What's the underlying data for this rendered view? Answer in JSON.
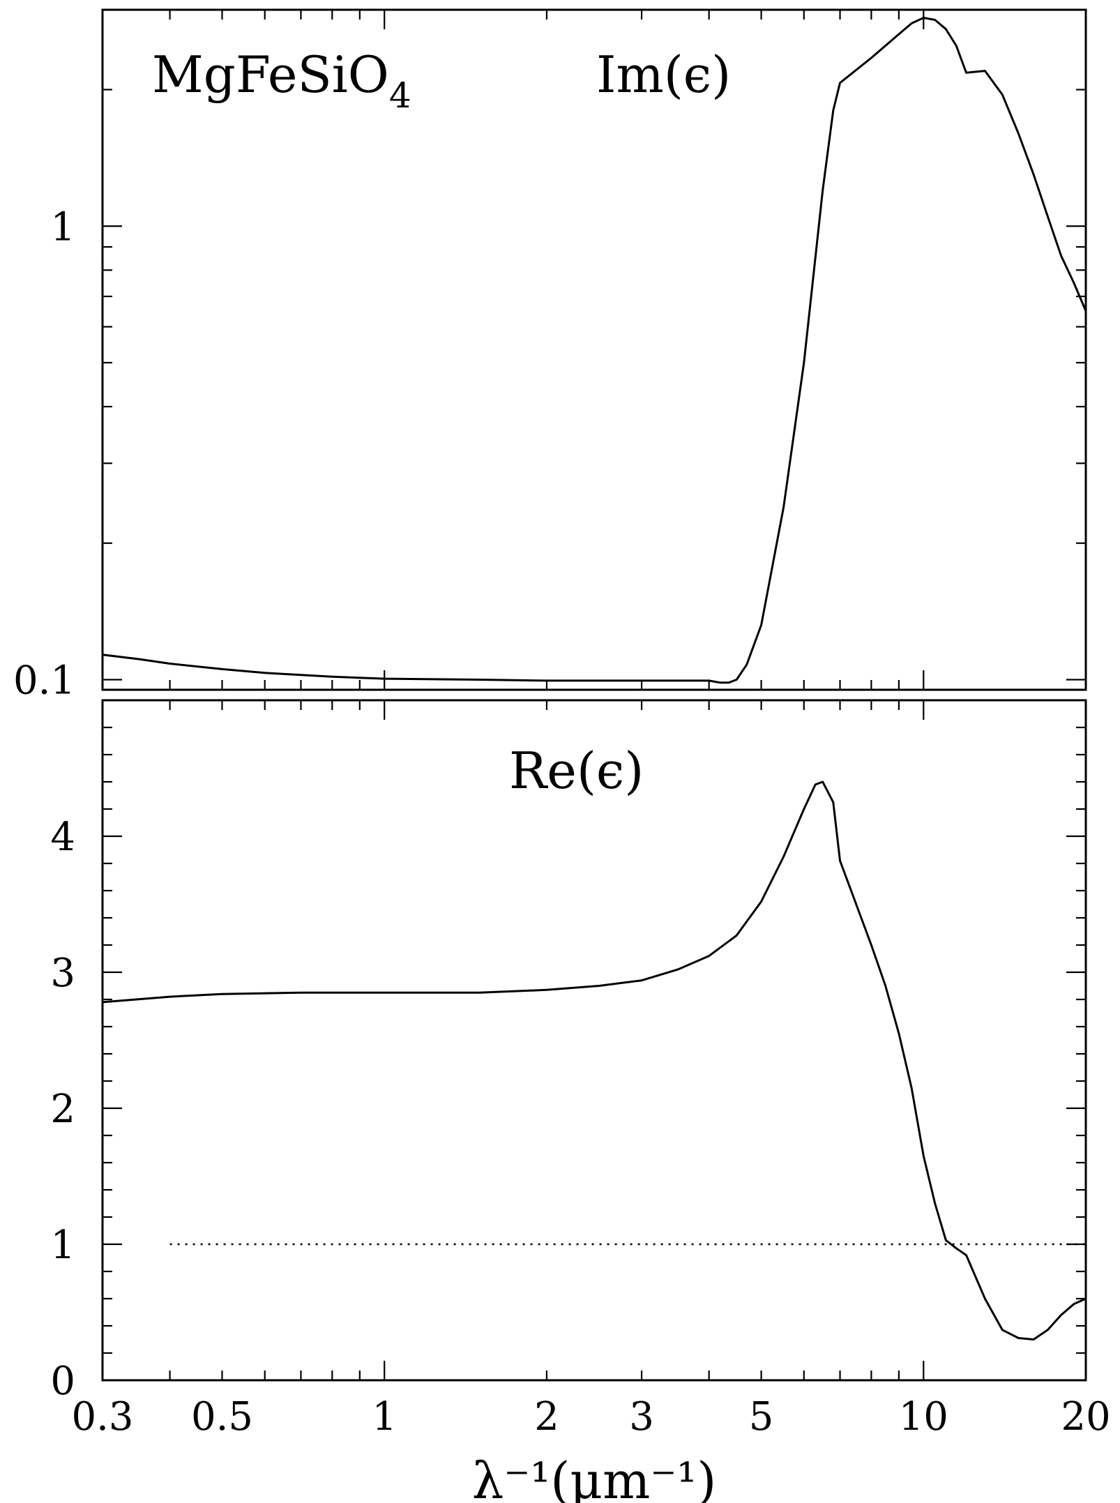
{
  "chart_data": [
    {
      "type": "line",
      "panel": "top",
      "x_scale": "log",
      "y_scale": "log",
      "xlim": [
        0.3,
        20
      ],
      "ylim": [
        0.095,
        3.0
      ],
      "annotations": [
        "MgFeSiO",
        "4",
        "Im(ϵ)"
      ],
      "yticks_labeled": [
        {
          "value": 0.1,
          "label": "0.1"
        },
        {
          "value": 1,
          "label": "1"
        }
      ],
      "series": [
        {
          "x": [
            0.3,
            0.35,
            0.4,
            0.5,
            0.6,
            0.8,
            1.0,
            1.5,
            2.0,
            3.0,
            4.0,
            4.2,
            4.35,
            4.5,
            4.7,
            5.0,
            5.5,
            6.0,
            6.5,
            6.8,
            7.0,
            8.0,
            9.0,
            9.5,
            10.0,
            10.5,
            11.0,
            11.5,
            12.0,
            13.0,
            14.0,
            15.0,
            16.0,
            17.0,
            18.0,
            19.0,
            20.0
          ],
          "y": [
            0.1135,
            0.111,
            0.1085,
            0.1055,
            0.1035,
            0.1015,
            0.1005,
            0.1,
            0.0995,
            0.0995,
            0.0995,
            0.0985,
            0.0985,
            0.1,
            0.108,
            0.132,
            0.24,
            0.5,
            1.2,
            1.8,
            2.07,
            2.35,
            2.65,
            2.8,
            2.88,
            2.85,
            2.72,
            2.5,
            2.18,
            2.2,
            1.95,
            1.6,
            1.3,
            1.05,
            0.86,
            0.75,
            0.65
          ]
        }
      ]
    },
    {
      "type": "line",
      "panel": "bottom",
      "x_scale": "log",
      "y_scale": "linear",
      "xlim": [
        0.3,
        20
      ],
      "ylim": [
        0,
        5
      ],
      "annotations": [
        "Re(ϵ)"
      ],
      "xlabel": "λ⁻¹(μm⁻¹)",
      "xticks_labeled": [
        {
          "value": 0.3,
          "label": "0.3"
        },
        {
          "value": 0.5,
          "label": "0.5"
        },
        {
          "value": 1,
          "label": "1"
        },
        {
          "value": 2,
          "label": "2"
        },
        {
          "value": 3,
          "label": "3"
        },
        {
          "value": 5,
          "label": "5"
        },
        {
          "value": 10,
          "label": "10"
        },
        {
          "value": 20,
          "label": "20"
        }
      ],
      "yticks_labeled": [
        {
          "value": 0,
          "label": "0"
        },
        {
          "value": 1,
          "label": "1"
        },
        {
          "value": 2,
          "label": "2"
        },
        {
          "value": 3,
          "label": "3"
        },
        {
          "value": 4,
          "label": "4"
        }
      ],
      "reference_line": {
        "y": 1,
        "style": "dotted"
      },
      "series": [
        {
          "x": [
            0.3,
            0.4,
            0.5,
            0.7,
            1.0,
            1.5,
            2.0,
            2.5,
            3.0,
            3.5,
            4.0,
            4.5,
            5.0,
            5.5,
            6.0,
            6.3,
            6.5,
            6.8,
            7.0,
            7.5,
            8.0,
            8.5,
            9.0,
            9.5,
            10.0,
            10.5,
            11.0,
            11.5,
            12.0,
            13.0,
            14.0,
            15.0,
            16.0,
            17.0,
            18.0,
            19.0,
            20.0
          ],
          "y": [
            2.78,
            2.82,
            2.84,
            2.85,
            2.85,
            2.85,
            2.87,
            2.9,
            2.94,
            3.02,
            3.12,
            3.27,
            3.52,
            3.85,
            4.2,
            4.38,
            4.4,
            4.25,
            3.82,
            3.5,
            3.2,
            2.9,
            2.55,
            2.15,
            1.65,
            1.3,
            1.03,
            0.97,
            0.92,
            0.6,
            0.37,
            0.31,
            0.3,
            0.37,
            0.48,
            0.56,
            0.6
          ]
        }
      ]
    }
  ]
}
